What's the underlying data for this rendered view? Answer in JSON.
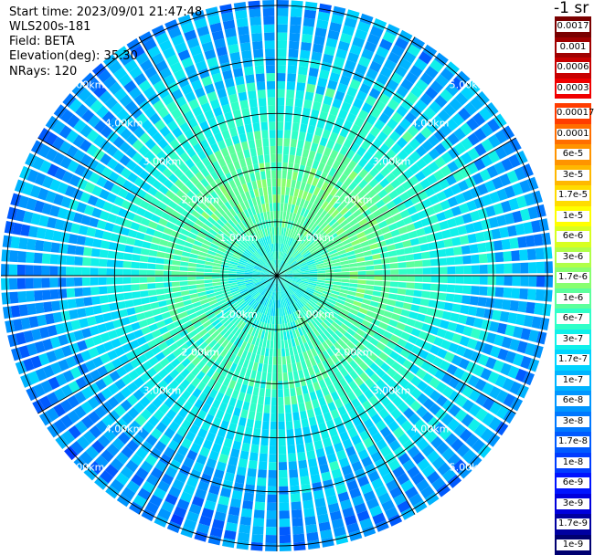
{
  "header": {
    "start_time": "Start time: 2023/09/01 21:47:48",
    "instrument": "WLS200s-181",
    "field": "Field: BETA",
    "elevation": "Elevation(deg): 35.30",
    "nrays": "NRays: 120"
  },
  "unit_label": "-1 sr",
  "legend": [
    {
      "label": "0.0017",
      "color": "#7a0000"
    },
    {
      "label": "0.001",
      "color": "#a00000"
    },
    {
      "label": "0.0006",
      "color": "#c80000"
    },
    {
      "label": "0.0003",
      "color": "#f00000"
    },
    {
      "label": "0.00017",
      "color": "#ff3c00"
    },
    {
      "label": "0.0001",
      "color": "#ff6e00"
    },
    {
      "label": "6e-5",
      "color": "#ff9400"
    },
    {
      "label": "3e-5",
      "color": "#ffb800"
    },
    {
      "label": "1.7e-5",
      "color": "#ffdc00"
    },
    {
      "label": "1e-5",
      "color": "#ffff00"
    },
    {
      "label": "6e-6",
      "color": "#d8ff20"
    },
    {
      "label": "3e-6",
      "color": "#b0ff48"
    },
    {
      "label": "1.7e-6",
      "color": "#88ff70"
    },
    {
      "label": "1e-6",
      "color": "#5cff9c"
    },
    {
      "label": "6e-7",
      "color": "#30ffc8"
    },
    {
      "label": "3e-7",
      "color": "#10f0ea"
    },
    {
      "label": "1.7e-7",
      "color": "#00d4ff"
    },
    {
      "label": "1e-7",
      "color": "#00b4ff"
    },
    {
      "label": "6e-8",
      "color": "#0096ff"
    },
    {
      "label": "3e-8",
      "color": "#0078ff"
    },
    {
      "label": "1.7e-8",
      "color": "#005aff"
    },
    {
      "label": "1e-8",
      "color": "#003cff"
    },
    {
      "label": "6e-9",
      "color": "#0014ff"
    },
    {
      "label": "3e-9",
      "color": "#0000dc"
    },
    {
      "label": "1.7e-9",
      "color": "#0000a0"
    },
    {
      "label": "1e-9",
      "color": "#000070"
    }
  ],
  "range_labels": [
    "1.00km",
    "2.00km",
    "3.00km",
    "4.00km",
    "5.00km"
  ],
  "map": {
    "n_rays": 120,
    "range_ring_km": [
      1,
      2,
      3,
      4,
      5
    ],
    "max_range_km": 5.1,
    "range_gates": 34,
    "spoke_count": 12
  }
}
